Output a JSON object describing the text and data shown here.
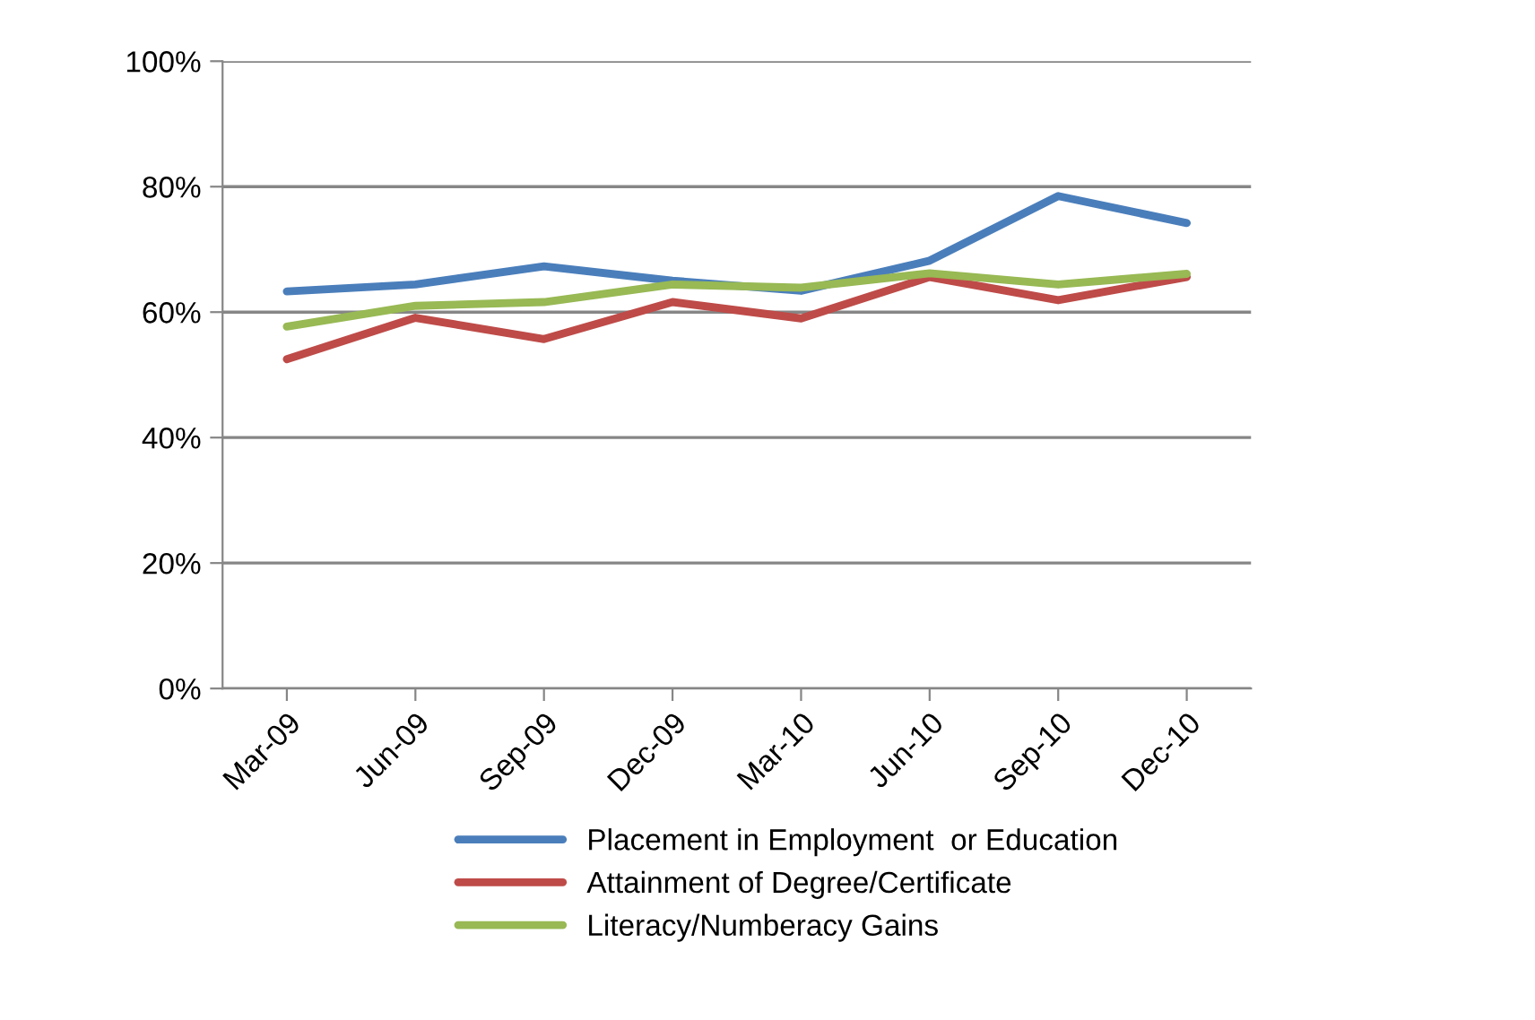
{
  "chart_data": {
    "type": "line",
    "categories": [
      "Mar-09",
      "Jun-09",
      "Sep-09",
      "Dec-09",
      "Mar-10",
      "Jun-10",
      "Sep-10",
      "Dec-10"
    ],
    "series": [
      {
        "name": "Placement in Employment  or Education",
        "color": "#4a7ebb",
        "values": [
          63.3,
          64.4,
          67.3,
          65.0,
          63.4,
          68.2,
          78.5,
          74.2
        ]
      },
      {
        "name": "Attainment of Degree/Certificate",
        "color": "#be4b48",
        "values": [
          52.5,
          59.1,
          55.7,
          61.6,
          59.0,
          65.6,
          61.9,
          65.6
        ]
      },
      {
        "name": "Literacy/Numberacy Gains",
        "color": "#98b954",
        "values": [
          57.7,
          61.0,
          61.6,
          64.4,
          63.9,
          66.2,
          64.4,
          66.1
        ]
      }
    ],
    "ylim": [
      0,
      100
    ],
    "yticks": [
      {
        "value": 0,
        "label": "0%"
      },
      {
        "value": 20,
        "label": "20%"
      },
      {
        "value": 40,
        "label": "40%"
      },
      {
        "value": 60,
        "label": "60%"
      },
      {
        "value": 80,
        "label": "80%"
      },
      {
        "value": 100,
        "label": "100%"
      }
    ],
    "grid": "y",
    "legend": "bottom",
    "marker": "none",
    "line_style": "solid"
  }
}
